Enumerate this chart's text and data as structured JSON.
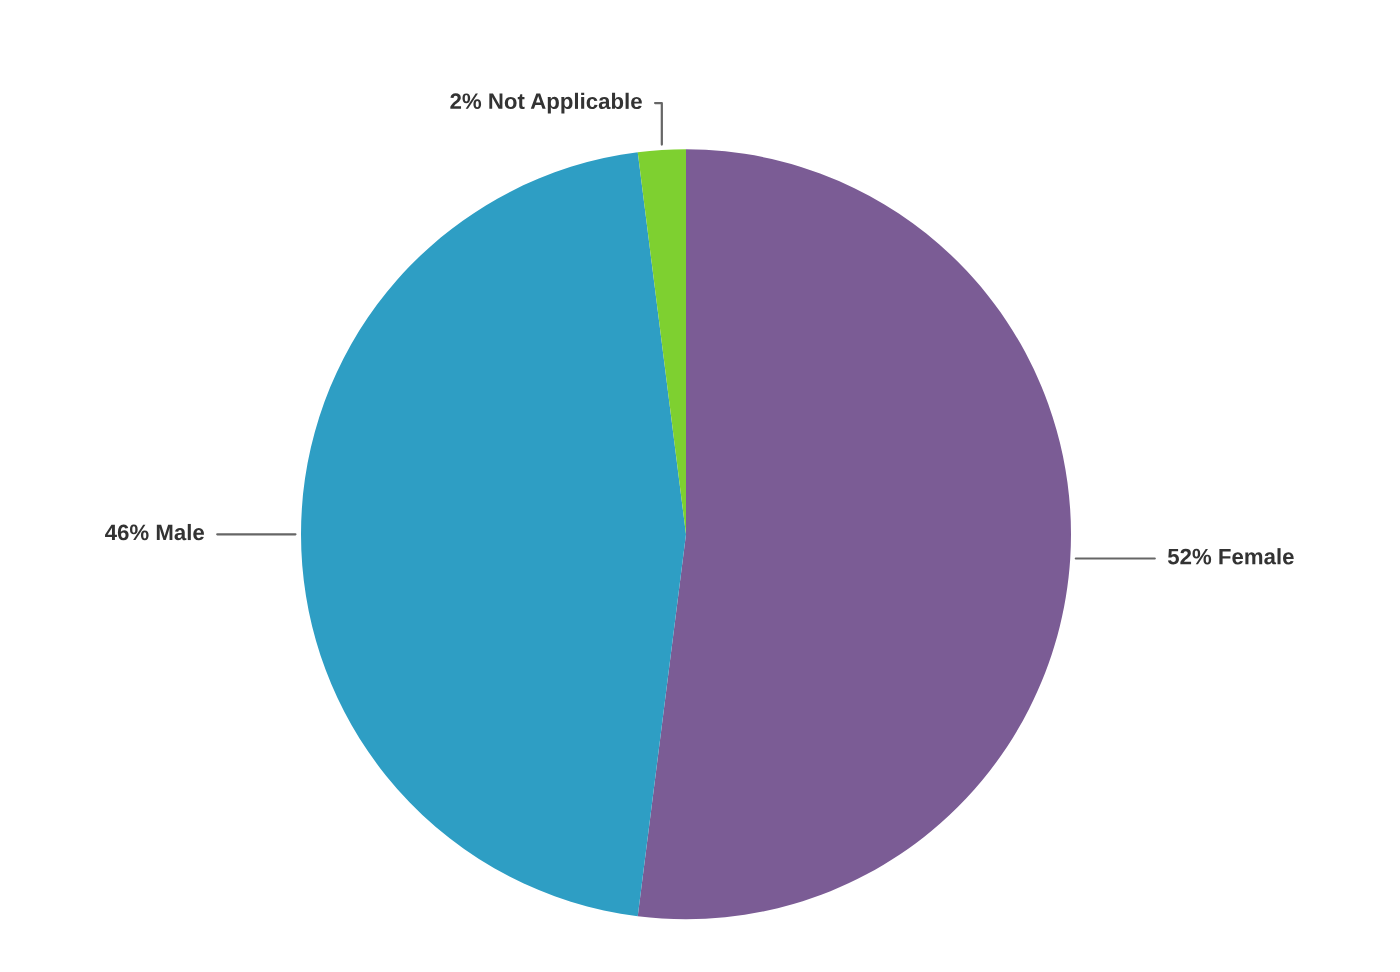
{
  "chart_data": {
    "type": "pie",
    "categories": [
      "Female",
      "Male",
      "Not Applicable"
    ],
    "values": [
      52,
      46,
      2
    ],
    "value_labels": [
      "52%",
      "46%",
      "2%"
    ],
    "colors": [
      "#7b5c95",
      "#2e9ec4",
      "#7ed030"
    ],
    "legend": false
  }
}
